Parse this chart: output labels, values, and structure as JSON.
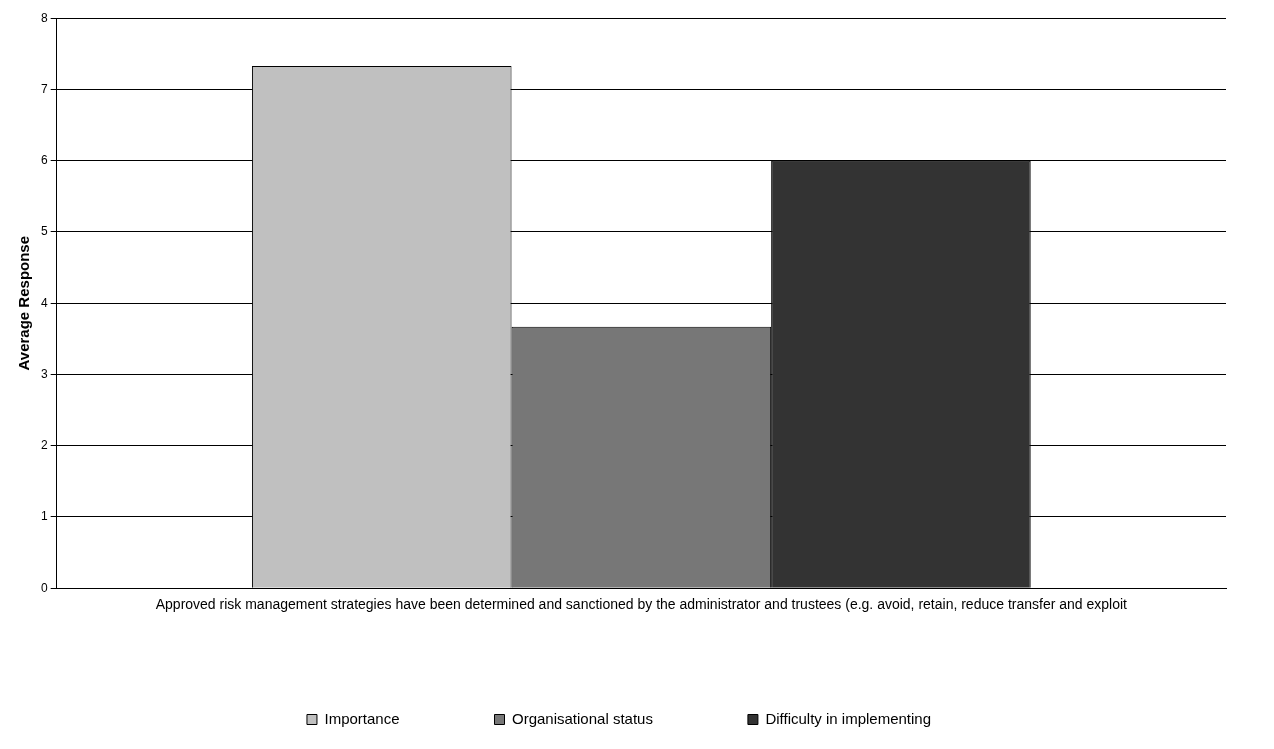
{
  "chart_data": {
    "type": "bar",
    "ylabel": "Average Response",
    "categories": [
      "Approved risk management strategies have been determined and sanctioned by the administrator and trustees (e.g. avoid, retain, reduce transfer and exploit"
    ],
    "series": [
      {
        "name": "Importance",
        "color": "#c0c0c0",
        "values": [
          7.33
        ]
      },
      {
        "name": "Organisational status",
        "color": "#777777",
        "values": [
          3.67
        ]
      },
      {
        "name": "Difficulty in implementing",
        "color": "#333333",
        "values": [
          6
        ]
      }
    ],
    "ylim": [
      0,
      8
    ],
    "yticks": [
      0,
      1,
      2,
      3,
      4,
      5,
      6,
      7,
      8
    ],
    "grid": "y",
    "legend": "bottom"
  }
}
